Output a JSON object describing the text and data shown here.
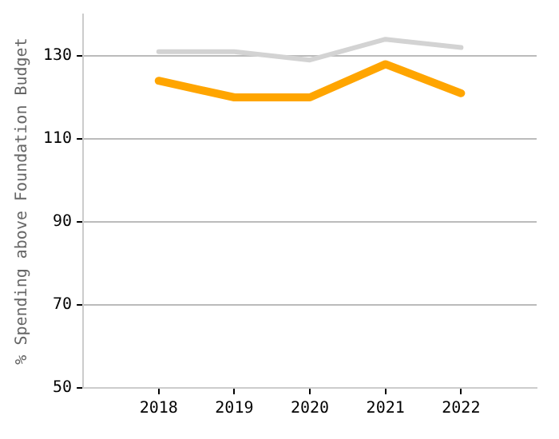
{
  "chart_data": {
    "type": "line",
    "ylabel": "% Spending above Foundation Budget",
    "x": [
      2018,
      2019,
      2020,
      2021,
      2022
    ],
    "xlim": [
      2017,
      2023
    ],
    "xticks": [
      2018,
      2019,
      2020,
      2021,
      2022
    ],
    "ylim": [
      50,
      140
    ],
    "yticks": [
      50,
      70,
      90,
      110,
      130
    ],
    "grid": "y",
    "marker": "none",
    "series": [
      {
        "color": "#d3d3d3",
        "values": [
          131,
          131,
          129,
          134,
          132
        ]
      },
      {
        "color": "#ffa500",
        "values": [
          124,
          120,
          120,
          128,
          121
        ]
      }
    ]
  }
}
